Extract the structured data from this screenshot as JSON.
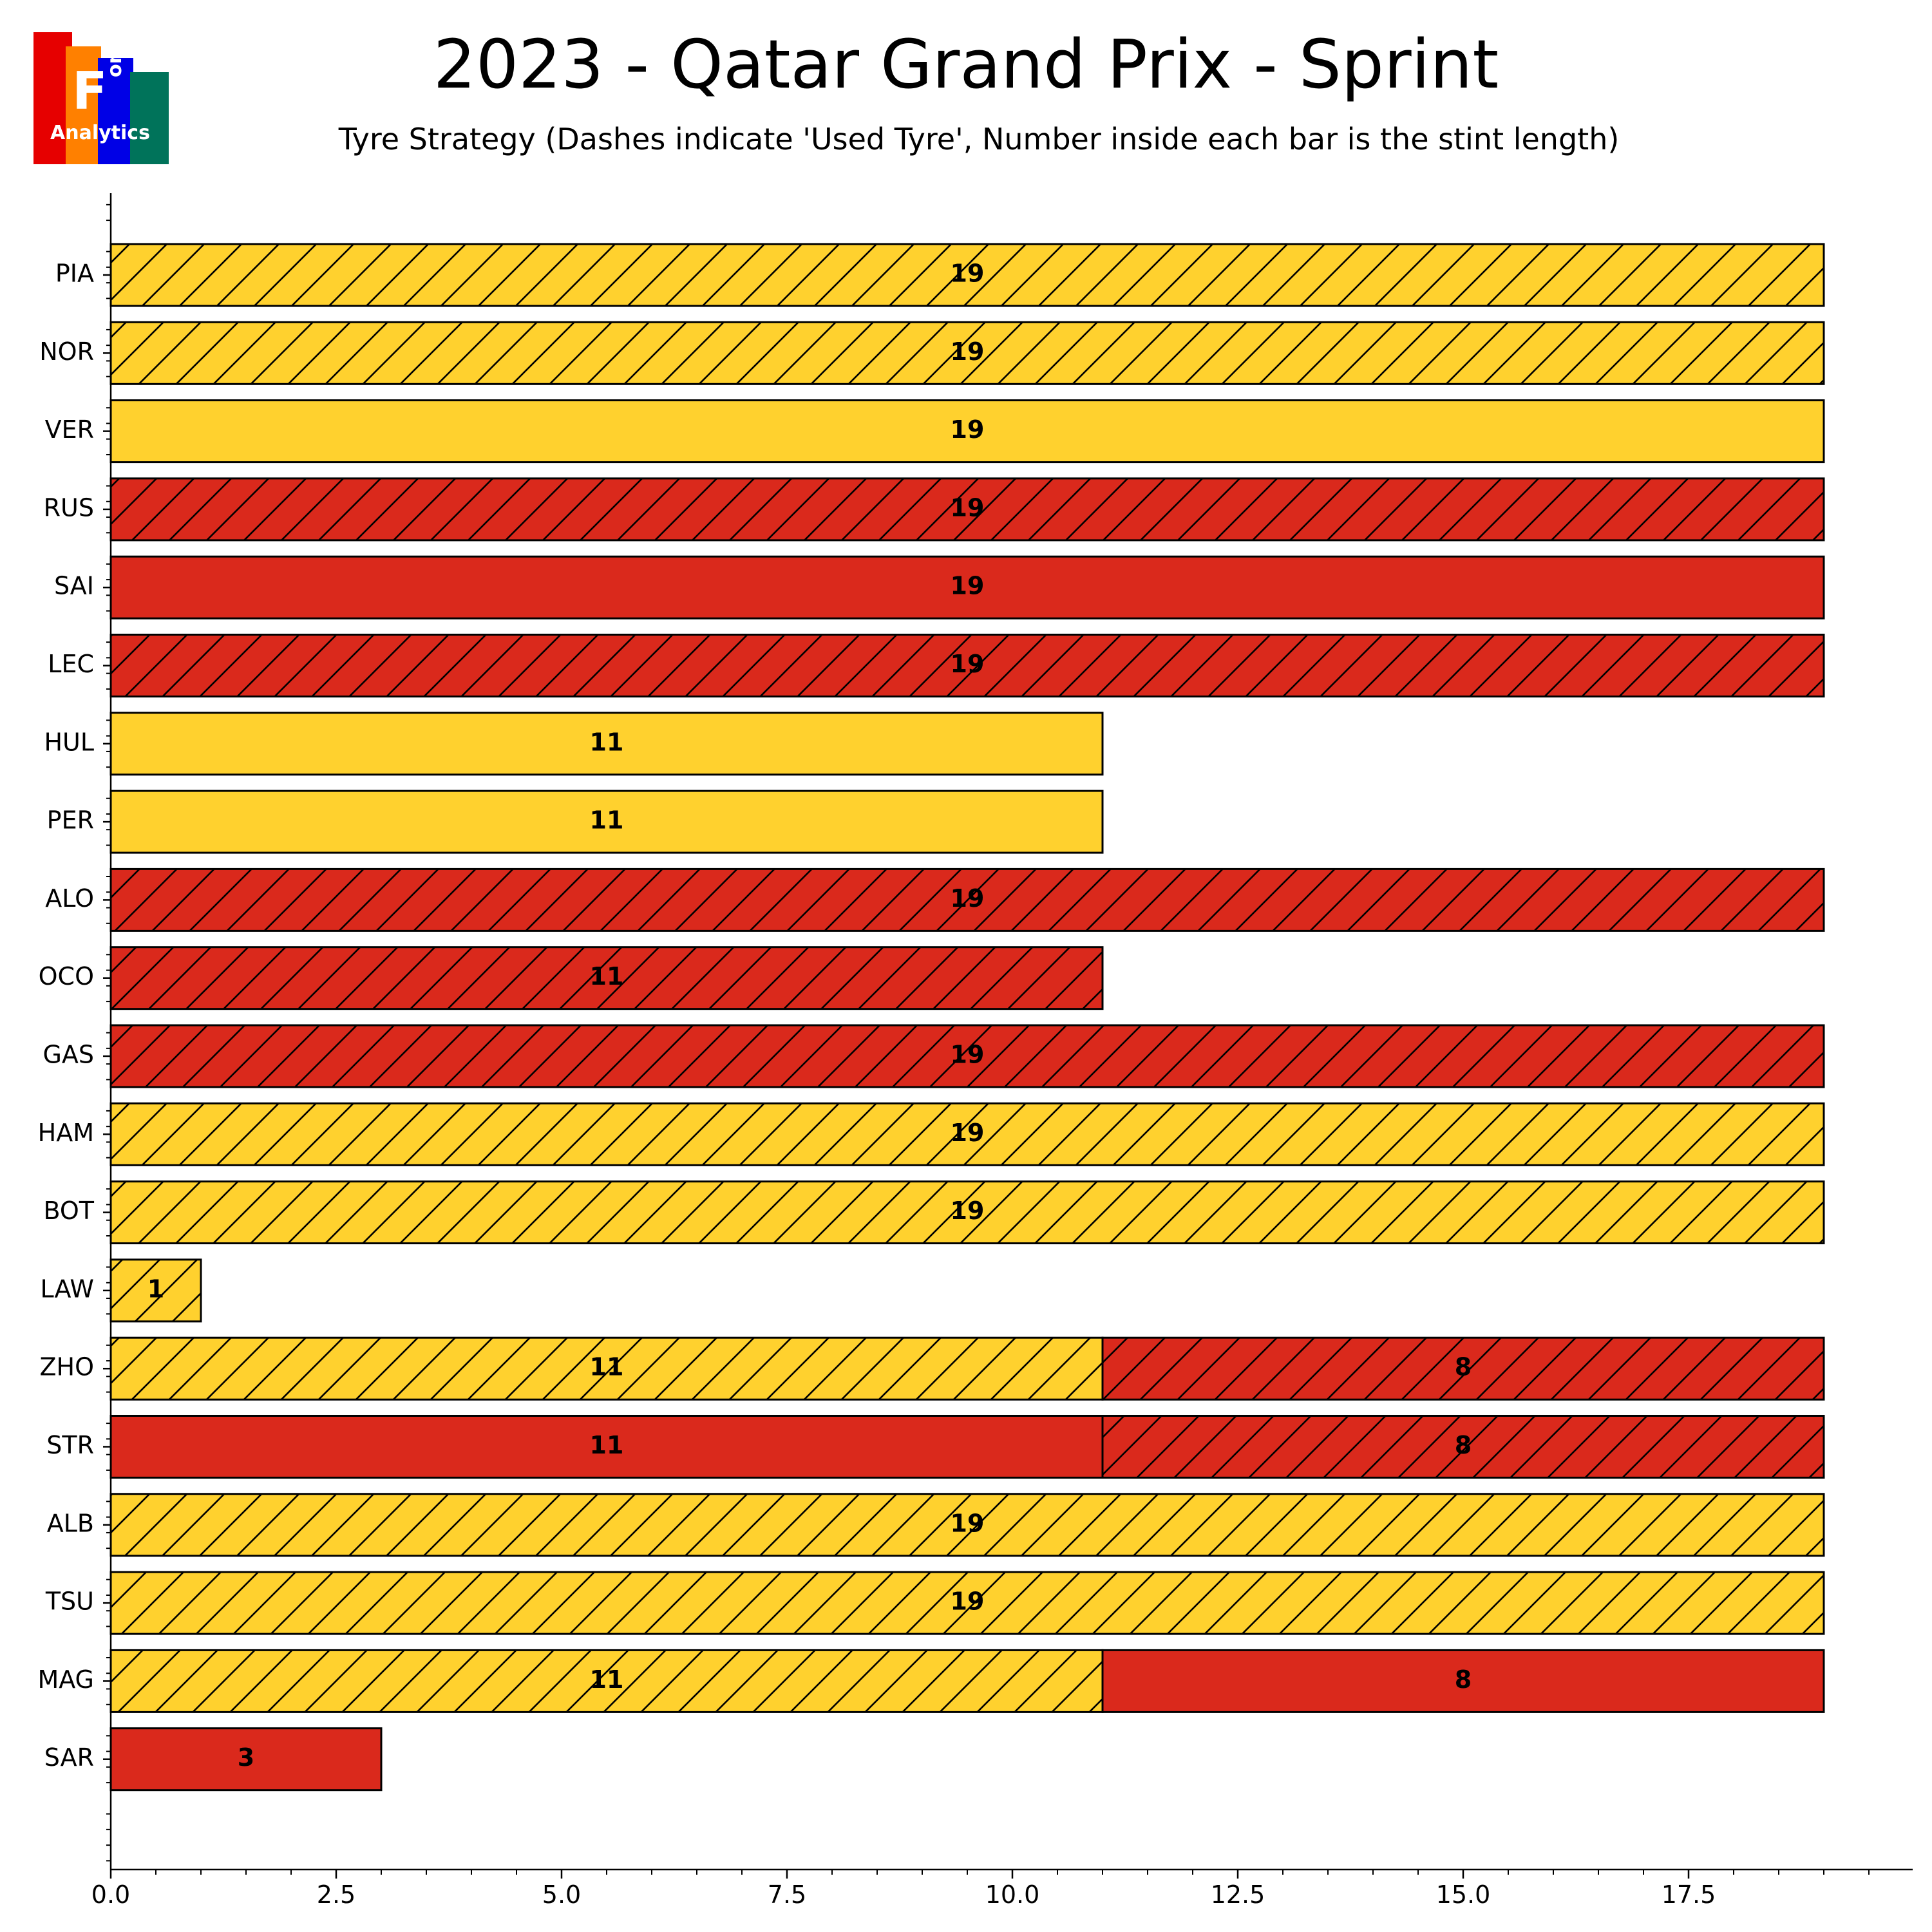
{
  "logo": {
    "letter": "F",
    "word_vertical": "one",
    "word": "Analytics",
    "colors": [
      "#e60000",
      "#ff8000",
      "#0000e6",
      "#00735a"
    ]
  },
  "compound_colors": {
    "SOFT": "#da291c",
    "MEDIUM": "#ffd12e"
  },
  "chart_data": {
    "type": "bar",
    "orientation": "horizontal-stacked",
    "title": "2023 - Qatar Grand Prix - Sprint",
    "subtitle": "Tyre Strategy (Dashes indicate 'Used Tyre', Number inside each bar is the stint length)",
    "xlabel": "",
    "ylabel": "",
    "xlim": [
      0,
      20
    ],
    "xticks": [
      0.0,
      2.5,
      5.0,
      7.5,
      10.0,
      12.5,
      15.0,
      17.5
    ],
    "xtick_labels": [
      "0.0",
      "2.5",
      "5.0",
      "7.5",
      "10.0",
      "12.5",
      "15.0",
      "17.5"
    ],
    "drivers": [
      {
        "driver": "PIA",
        "stints": [
          {
            "compound": "MEDIUM",
            "laps": 19,
            "used": true
          }
        ]
      },
      {
        "driver": "NOR",
        "stints": [
          {
            "compound": "MEDIUM",
            "laps": 19,
            "used": true
          }
        ]
      },
      {
        "driver": "VER",
        "stints": [
          {
            "compound": "MEDIUM",
            "laps": 19,
            "used": false
          }
        ]
      },
      {
        "driver": "RUS",
        "stints": [
          {
            "compound": "SOFT",
            "laps": 19,
            "used": true
          }
        ]
      },
      {
        "driver": "SAI",
        "stints": [
          {
            "compound": "SOFT",
            "laps": 19,
            "used": false
          }
        ]
      },
      {
        "driver": "LEC",
        "stints": [
          {
            "compound": "SOFT",
            "laps": 19,
            "used": true
          }
        ]
      },
      {
        "driver": "HUL",
        "stints": [
          {
            "compound": "MEDIUM",
            "laps": 11,
            "used": false
          }
        ]
      },
      {
        "driver": "PER",
        "stints": [
          {
            "compound": "MEDIUM",
            "laps": 11,
            "used": false
          }
        ]
      },
      {
        "driver": "ALO",
        "stints": [
          {
            "compound": "SOFT",
            "laps": 19,
            "used": true
          }
        ]
      },
      {
        "driver": "OCO",
        "stints": [
          {
            "compound": "SOFT",
            "laps": 11,
            "used": true
          }
        ]
      },
      {
        "driver": "GAS",
        "stints": [
          {
            "compound": "SOFT",
            "laps": 19,
            "used": true
          }
        ]
      },
      {
        "driver": "HAM",
        "stints": [
          {
            "compound": "MEDIUM",
            "laps": 19,
            "used": true
          }
        ]
      },
      {
        "driver": "BOT",
        "stints": [
          {
            "compound": "MEDIUM",
            "laps": 19,
            "used": true
          }
        ]
      },
      {
        "driver": "LAW",
        "stints": [
          {
            "compound": "MEDIUM",
            "laps": 1,
            "used": true
          }
        ]
      },
      {
        "driver": "ZHO",
        "stints": [
          {
            "compound": "MEDIUM",
            "laps": 11,
            "used": true
          },
          {
            "compound": "SOFT",
            "laps": 8,
            "used": true
          }
        ]
      },
      {
        "driver": "STR",
        "stints": [
          {
            "compound": "SOFT",
            "laps": 11,
            "used": false
          },
          {
            "compound": "SOFT",
            "laps": 8,
            "used": true
          }
        ]
      },
      {
        "driver": "ALB",
        "stints": [
          {
            "compound": "MEDIUM",
            "laps": 19,
            "used": true
          }
        ]
      },
      {
        "driver": "TSU",
        "stints": [
          {
            "compound": "MEDIUM",
            "laps": 19,
            "used": true
          }
        ]
      },
      {
        "driver": "MAG",
        "stints": [
          {
            "compound": "MEDIUM",
            "laps": 11,
            "used": true
          },
          {
            "compound": "SOFT",
            "laps": 8,
            "used": false
          }
        ]
      },
      {
        "driver": "SAR",
        "stints": [
          {
            "compound": "SOFT",
            "laps": 3,
            "used": false
          }
        ]
      }
    ]
  }
}
